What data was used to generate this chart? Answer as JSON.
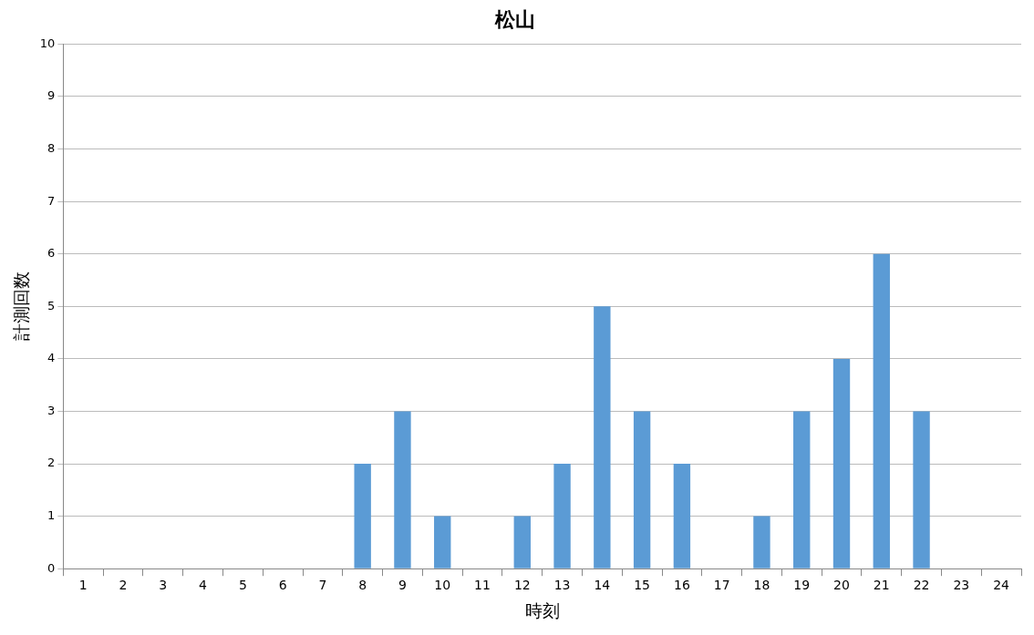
{
  "chart_data": {
    "type": "bar",
    "title": "松山",
    "xlabel": "時刻",
    "ylabel": "計測回数",
    "categories": [
      "1",
      "2",
      "3",
      "4",
      "5",
      "6",
      "7",
      "8",
      "9",
      "10",
      "11",
      "12",
      "13",
      "14",
      "15",
      "16",
      "17",
      "18",
      "19",
      "20",
      "21",
      "22",
      "23",
      "24"
    ],
    "values": [
      0,
      0,
      0,
      0,
      0,
      0,
      0,
      2,
      3,
      1,
      0,
      1,
      2,
      5,
      3,
      2,
      0,
      1,
      3,
      4,
      6,
      3,
      0,
      0
    ],
    "color": "#5b9bd5",
    "ylim": [
      0,
      10
    ],
    "yticks": [
      0,
      1,
      2,
      3,
      4,
      5,
      6,
      7,
      8,
      9,
      10
    ],
    "grid": "y",
    "legend": false
  }
}
